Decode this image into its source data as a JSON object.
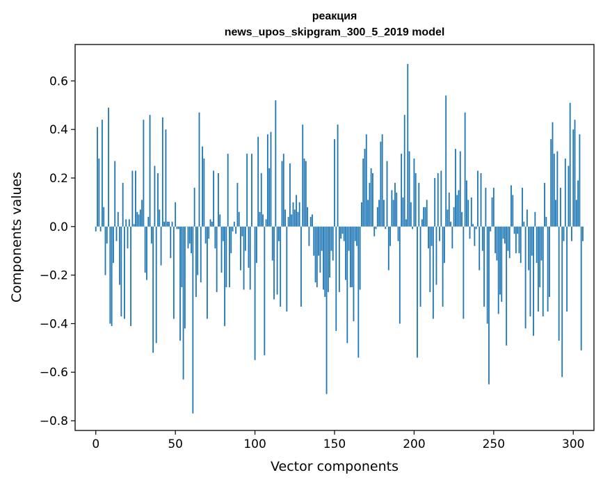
{
  "chart_data": {
    "type": "bar",
    "title": "реакция",
    "subtitle": "news_upos_skipgram_300_5_2019 model",
    "xlabel": "Vector components",
    "ylabel": "Components values",
    "xlim": [
      -13,
      313
    ],
    "ylim": [
      -0.84,
      0.75
    ],
    "xticks": [
      0,
      50,
      100,
      150,
      200,
      250,
      300
    ],
    "yticks": [
      -0.8,
      -0.6,
      -0.4,
      -0.2,
      0.0,
      0.2,
      0.4,
      0.6
    ],
    "xtick_labels": [
      "0",
      "50",
      "100",
      "150",
      "200",
      "250",
      "300"
    ],
    "ytick_labels": [
      "−0.8",
      "−0.6",
      "−0.4",
      "−0.2",
      "0.0",
      "0.2",
      "0.4",
      "0.6"
    ],
    "bar_color": "#1f77b4",
    "grid": false,
    "values": [
      -0.02,
      0.41,
      0.28,
      -0.02,
      0.44,
      0.08,
      -0.2,
      -0.07,
      0.49,
      -0.4,
      -0.41,
      -0.15,
      0.27,
      -0.06,
      0.06,
      -0.24,
      -0.37,
      0.18,
      -0.38,
      0.03,
      -0.09,
      0.03,
      -0.41,
      0.23,
      0.01,
      0.23,
      0.06,
      0.05,
      0.07,
      0.11,
      0.44,
      -0.19,
      -0.22,
      0.04,
      0.46,
      -0.07,
      -0.52,
      0.25,
      -0.48,
      0.22,
      0.07,
      -0.16,
      0.45,
      0.02,
      0.4,
      0.02,
      0.02,
      -0.13,
      0.02,
      -0.38,
      0.1,
      -0.01,
      -0.01,
      -0.47,
      -0.25,
      -0.63,
      -0.42,
      0.0,
      -0.09,
      -0.07,
      -0.11,
      -0.77,
      0.16,
      -0.29,
      -0.2,
      0.47,
      -0.23,
      0.33,
      0.28,
      -0.07,
      -0.38,
      -0.05,
      0.03,
      0.02,
      0.23,
      -0.09,
      -0.27,
      0.22,
      0.05,
      -0.19,
      -0.06,
      -0.41,
      -0.25,
      0.3,
      -0.25,
      -0.11,
      -0.02,
      0.02,
      -0.03,
      0.18,
      0.06,
      -0.18,
      -0.04,
      -0.26,
      -0.1,
      0.3,
      -0.17,
      -0.26,
      0.3,
      0.0,
      -0.55,
      -0.15,
      0.37,
      0.06,
      0.22,
      0.05,
      -0.53,
      0.03,
      0.38,
      0.24,
      0.39,
      -0.14,
      -0.3,
      0.52,
      -0.28,
      -0.06,
      -0.33,
      0.27,
      0.3,
      0.07,
      -0.35,
      0.04,
      0.26,
      0.05,
      0.1,
      0.07,
      0.13,
      0.06,
      0.1,
      -0.33,
      0.42,
      0.28,
      0.27,
      0.08,
      -0.08,
      0.04,
      0.05,
      -0.12,
      -0.23,
      -0.25,
      -0.12,
      -0.19,
      -0.1,
      -0.26,
      -0.29,
      -0.69,
      -0.27,
      -0.21,
      -0.1,
      -0.14,
      0.36,
      -0.43,
      0.42,
      -0.27,
      -0.05,
      -0.03,
      -0.06,
      -0.22,
      -0.48,
      -0.1,
      -0.25,
      -0.25,
      -0.39,
      -0.06,
      -0.08,
      -0.54,
      -0.26,
      0.1,
      0.28,
      0.32,
      0.38,
      0.11,
      0.18,
      0.24,
      0.22,
      -0.04,
      -0.01,
      0.08,
      0.11,
      0.35,
      0.38,
      0.11,
      -0.01,
      0.27,
      -0.18,
      -0.08,
      0.15,
      0.11,
      0.18,
      0.14,
      -0.06,
      -0.4,
      0.3,
      0.12,
      0.46,
      0.03,
      0.67,
      0.31,
      0.1,
      -0.01,
      0.28,
      0.22,
      -0.54,
      0.18,
      -0.33,
      0.03,
      0.08,
      0.08,
      0.11,
      -0.09,
      -0.27,
      -0.08,
      -0.38,
      0.2,
      -0.24,
      0.22,
      -0.06,
      0.23,
      -0.33,
      -0.15,
      0.54,
      0.07,
      0.14,
      0.02,
      -0.09,
      0.08,
      0.32,
      0.13,
      0.15,
      0.31,
      0.06,
      -0.38,
      0.47,
      0.19,
      0.11,
      -0.05,
      0.12,
      0.01,
      -0.08,
      -0.01,
      0.23,
      -0.18,
      0.22,
      -0.1,
      -0.33,
      0.16,
      -0.4,
      -0.65,
      -0.02,
      0.12,
      0.16,
      -0.11,
      -0.14,
      -0.36,
      -0.28,
      -0.31,
      -0.05,
      -0.07,
      -0.49,
      -0.1,
      -0.13,
      0.17,
      0.13,
      -0.03,
      -0.11,
      -0.03,
      -0.11,
      -0.15,
      0.16,
      0.02,
      -0.42,
      0.07,
      -0.18,
      -0.37,
      -0.12,
      -0.45,
      0.06,
      -0.15,
      -0.35,
      -0.25,
      -0.14,
      -0.37,
      0.18,
      0.04,
      -0.35,
      -0.29,
      0.36,
      0.43,
      0.3,
      0.11,
      0.31,
      -0.47,
      0.16,
      -0.62,
      -0.06,
      0.28,
      -0.35,
      0.25,
      0.51,
      -0.06,
      0.4,
      0.44,
      0.11,
      0.19,
      0.38,
      -0.51,
      -0.06
    ]
  }
}
